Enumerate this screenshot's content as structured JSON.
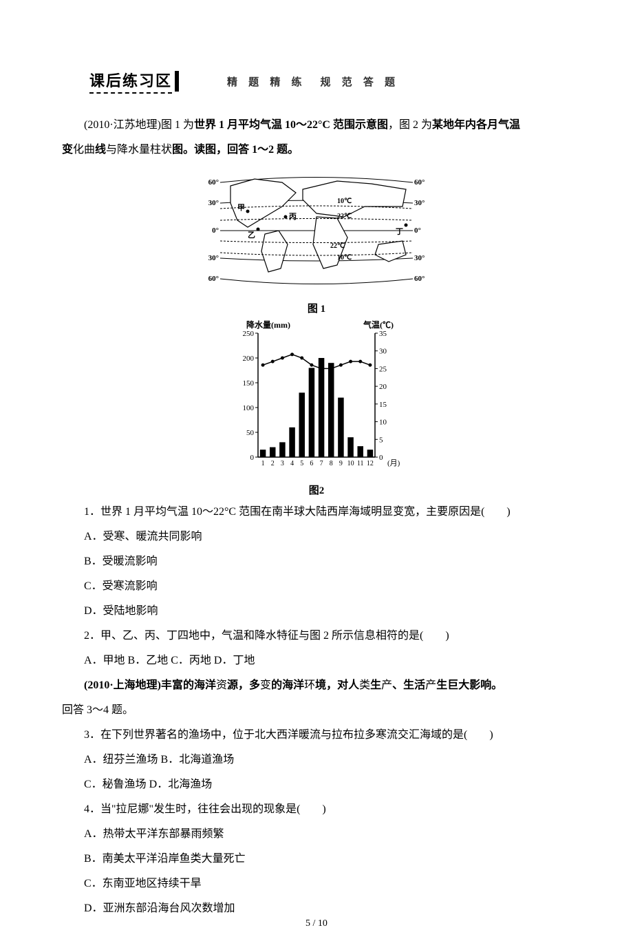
{
  "banner": {
    "title": "课后练习区",
    "subtitle": "精 题 精 练　规 范 答 题"
  },
  "intro": {
    "text_prefix": "(2010·江苏地理)图 1 为",
    "text_bold1": "世界 1 月平均气温 10～22°C 范围示意图",
    "text_mid": "，图 2 为",
    "text_bold2": "某地年内各月气温",
    "text_line2_prefix": "变",
    "text_bold3": "化曲",
    "text_line2_mid": "线",
    "text_bold4": "与降水量柱状",
    "text_line2_suffix": "图。读图，回答 1～2 题。"
  },
  "figure1": {
    "caption": "图 1",
    "lat_labels": [
      "60°",
      "30°",
      "0°",
      "30°",
      "60°"
    ],
    "iso_labels": [
      "10℃",
      "22℃",
      "22℃",
      "10℃"
    ],
    "point_labels": [
      "甲",
      "乙",
      "丙",
      "丁"
    ],
    "map_border_color": "#000000",
    "line_color": "#000000",
    "background_color": "#ffffff"
  },
  "figure2": {
    "caption": "图2",
    "type": "combo-bar-line",
    "y1_label": "降水量(mm)",
    "y2_label": "气温(℃)",
    "x_label_suffix": "(月)",
    "x_ticks": [
      "1",
      "2",
      "3",
      "4",
      "5",
      "6",
      "7",
      "8",
      "9",
      "10",
      "11",
      "12"
    ],
    "y1_ticks": [
      0,
      50,
      100,
      150,
      200,
      250
    ],
    "y2_ticks": [
      0,
      5,
      10,
      15,
      20,
      25,
      30,
      35
    ],
    "y1_lim": [
      0,
      250
    ],
    "y2_lim": [
      0,
      35
    ],
    "precip_values": [
      15,
      20,
      30,
      60,
      130,
      180,
      200,
      190,
      120,
      40,
      22,
      15
    ],
    "temp_values": [
      26,
      27,
      28,
      29,
      28,
      26,
      25,
      25,
      26,
      27,
      27,
      26
    ],
    "bar_color": "#000000",
    "line_color": "#000000",
    "marker": "circle",
    "axis_color": "#000000",
    "background_color": "#ffffff",
    "bar_width": 0.6,
    "label_fontsize": 12
  },
  "q1": {
    "stem": "1．世界 1 月平均气温 10～22°C 范围在南半球大陆西岸海域明显变宽，主要原因是(　　)",
    "A": "A．受寒、暖流共同影响",
    "B": "B．受暖流影响",
    "C": "C．受寒流影响",
    "D": "D．受陆地影响"
  },
  "q2": {
    "stem": "2．甲、乙、丙、丁四地中，气温和降水特征与图 2 所示信息相符的是(　　)",
    "options": "A．甲地 B．乙地 C．丙地 D．丁地"
  },
  "intro2": {
    "prefix": "(2010·上海地理)",
    "bold1": "丰富的海洋",
    "mid1": "资",
    "bold2": "源，多",
    "mid2": "变",
    "bold3": "的海洋",
    "mid3": "环",
    "bold4": "境，对人",
    "mid4": "类",
    "bold5": "生",
    "mid5": "产",
    "bold6": "、生活",
    "mid6": "产",
    "bold7": "生巨大影响。",
    "line2": "回答 3～4 题。"
  },
  "q3": {
    "stem": "3．在下列世界著名的渔场中，位于北大西洋暖流与拉布拉多寒流交汇海域的是(　　)",
    "line1": "A．纽芬兰渔场 B．北海道渔场",
    "line2": "C．秘鲁渔场 D．北海渔场"
  },
  "q4": {
    "stem": "4．当\"拉尼娜\"发生时，往往会出现的现象是(　　)",
    "A": "A．热带太平洋东部暴雨频繁",
    "B": "B．南美太平洋沿岸鱼类大量死亡",
    "C": "C．东南亚地区持续干旱",
    "D": "D．亚洲东部沿海台风次数增加"
  },
  "page_number": "5  /  10"
}
